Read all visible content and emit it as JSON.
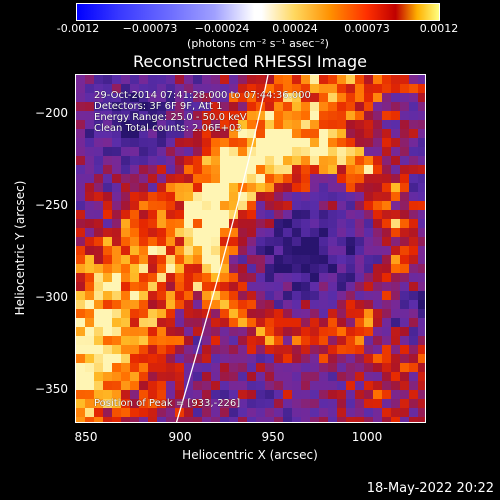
{
  "colorbar": {
    "ticks": [
      "-0.0012",
      "−0.00073",
      "−0.00024",
      "0.00024",
      "0.00073",
      "0.0012"
    ],
    "unit": "(photons cm⁻² s⁻¹ asec⁻²)"
  },
  "title": "Reconstructed RHESSI Image",
  "info": {
    "time_range": "29-Oct-2014 07:41:28.000 to 07:44:36.000",
    "detectors": "Detectors: 3F 6F 9F, Att 1",
    "energy": "Energy Range: 25.0 - 50.0 keV",
    "clean": "Clean    Total counts: 2.06E+03",
    "peak": "Position of Peak = [933,-226]"
  },
  "axes": {
    "xlabel": "Heliocentric X (arcsec)",
    "ylabel": "Heliocentric Y (arcsec)",
    "xticks": [
      "850",
      "900",
      "950",
      "1000"
    ],
    "yticks": [
      "−200",
      "−250",
      "−300",
      "−350"
    ]
  },
  "timestamp": "18-May-2022 20:22"
}
